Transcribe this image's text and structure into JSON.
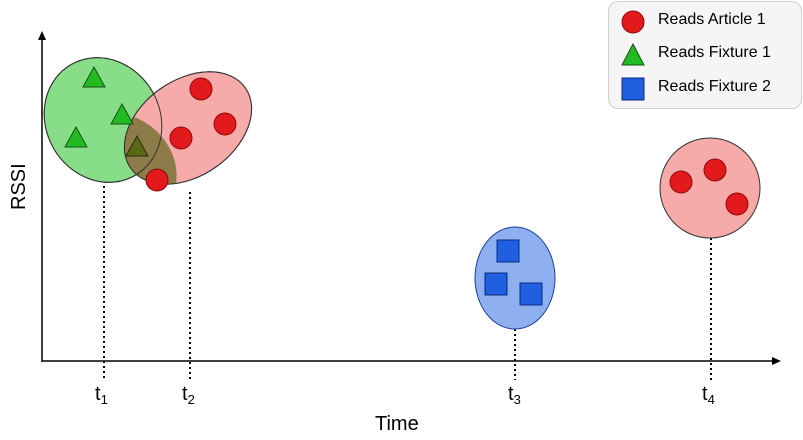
{
  "axes": {
    "x_label": "Time",
    "y_label": "RSSI"
  },
  "legend": {
    "items": [
      {
        "label": "Reads Article 1",
        "shape": "circle",
        "color": "#e31a1c"
      },
      {
        "label": "Reads Fixture 1",
        "shape": "triangle",
        "color": "#22bb22"
      },
      {
        "label": "Reads Fixture 2",
        "shape": "square",
        "color": "#1f5fe0"
      }
    ]
  },
  "time_ticks": [
    {
      "base": "t",
      "sub": "1"
    },
    {
      "base": "t",
      "sub": "2"
    },
    {
      "base": "t",
      "sub": "3"
    },
    {
      "base": "t",
      "sub": "4"
    }
  ],
  "colors": {
    "article_fill": "#f7aaaa",
    "fixture1_fill": "#88dd88",
    "fixture2_fill": "#8fb0f0",
    "overlap_fill": "#6b6b2a"
  }
}
